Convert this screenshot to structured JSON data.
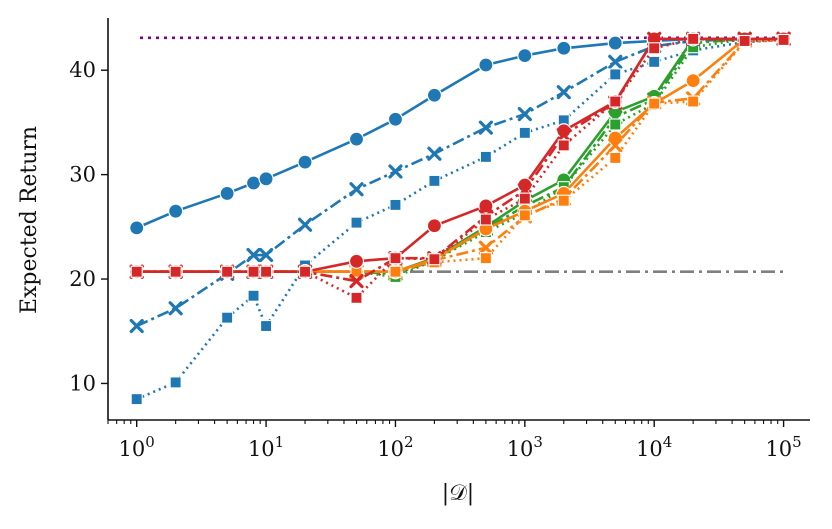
{
  "chart_data": {
    "type": "line",
    "xscale": "log",
    "xlabel": "|𝒟|",
    "ylabel": "Expected Return",
    "xlim": [
      0.6,
      160000
    ],
    "ylim": [
      6.5,
      45
    ],
    "xticks": [
      {
        "value": 1,
        "base": "10",
        "exp": "0"
      },
      {
        "value": 10,
        "base": "10",
        "exp": "1"
      },
      {
        "value": 100,
        "base": "10",
        "exp": "2"
      },
      {
        "value": 1000,
        "base": "10",
        "exp": "3"
      },
      {
        "value": 10000,
        "base": "10",
        "exp": "4"
      },
      {
        "value": 100000,
        "base": "10",
        "exp": "5"
      }
    ],
    "yticks": [
      {
        "value": 10,
        "label": "10"
      },
      {
        "value": 20,
        "label": "20"
      },
      {
        "value": 30,
        "label": "30"
      },
      {
        "value": 40,
        "label": "40"
      }
    ],
    "reference_lines": [
      {
        "name": "expert-level",
        "y": 43.1,
        "color": "#800080",
        "dash": "3,5"
      },
      {
        "name": "baseline-level",
        "y": 20.7,
        "color": "#7f7f7f",
        "dash": "14,5,3,5"
      }
    ],
    "series": [
      {
        "name": "blue-circle-solid",
        "color": "#1f77b4",
        "marker": "circle",
        "dash": "",
        "x": [
          1,
          2,
          5,
          8,
          10,
          20,
          50,
          100,
          200,
          500,
          1000,
          2000,
          5000,
          10000,
          20000,
          50000,
          100000
        ],
        "y": [
          24.9,
          26.5,
          28.2,
          29.2,
          29.6,
          31.2,
          33.4,
          35.3,
          37.6,
          40.5,
          41.4,
          42.1,
          42.6,
          42.8,
          43.0,
          43.0,
          43.0
        ]
      },
      {
        "name": "blue-x-dashdot",
        "color": "#1f77b4",
        "marker": "x",
        "dash": "12,4,3,4",
        "x": [
          1,
          2,
          5,
          8,
          10,
          20,
          50,
          100,
          200,
          500,
          1000,
          2000,
          5000,
          10000,
          20000,
          50000,
          100000
        ],
        "y": [
          15.5,
          17.2,
          20.5,
          22.3,
          22.3,
          25.2,
          28.6,
          30.3,
          32.0,
          34.5,
          35.8,
          37.9,
          40.8,
          42.3,
          42.8,
          43.0,
          43.0
        ]
      },
      {
        "name": "blue-square-dotted",
        "color": "#1f77b4",
        "marker": "square",
        "dash": "2,4",
        "x": [
          1,
          2,
          5,
          8,
          10,
          20,
          50,
          100,
          200,
          500,
          1000,
          2000,
          5000,
          10000,
          20000,
          50000,
          100000
        ],
        "y": [
          8.5,
          10.1,
          16.3,
          18.4,
          15.5,
          21.3,
          25.4,
          27.1,
          29.4,
          31.7,
          34.0,
          35.2,
          39.6,
          40.8,
          41.9,
          42.7,
          42.9
        ]
      },
      {
        "name": "green-circle-solid",
        "color": "#2ca02c",
        "marker": "circle",
        "dash": "",
        "x": [
          1,
          2,
          5,
          8,
          10,
          20,
          50,
          100,
          200,
          500,
          1000,
          2000,
          5000,
          10000,
          20000,
          50000,
          100000
        ],
        "y": [
          20.7,
          20.7,
          20.7,
          20.7,
          20.7,
          20.7,
          20.7,
          20.7,
          22.0,
          25.0,
          27.5,
          29.5,
          36.0,
          37.5,
          43.0,
          43.0,
          43.0
        ]
      },
      {
        "name": "green-x-dashdot",
        "color": "#2ca02c",
        "marker": "x",
        "dash": "12,4,3,4",
        "x": [
          1,
          2,
          5,
          8,
          10,
          20,
          50,
          100,
          200,
          500,
          1000,
          2000,
          5000,
          10000,
          20000,
          50000,
          100000
        ],
        "y": [
          20.7,
          20.7,
          20.7,
          20.7,
          20.7,
          20.7,
          20.7,
          20.5,
          21.8,
          24.8,
          27.0,
          28.8,
          35.5,
          37.2,
          42.6,
          43.0,
          43.0
        ]
      },
      {
        "name": "green-square-dotted",
        "color": "#2ca02c",
        "marker": "square",
        "dash": "2,4",
        "x": [
          1,
          2,
          5,
          8,
          10,
          20,
          50,
          100,
          200,
          500,
          1000,
          2000,
          5000,
          10000,
          20000,
          50000,
          100000
        ],
        "y": [
          20.7,
          20.7,
          20.7,
          20.7,
          20.7,
          20.7,
          20.7,
          20.2,
          21.8,
          24.5,
          26.3,
          28.8,
          34.8,
          36.8,
          42.2,
          43.0,
          43.0
        ]
      },
      {
        "name": "orange-circle-solid",
        "color": "#ff7f0e",
        "marker": "circle",
        "dash": "",
        "x": [
          1,
          2,
          5,
          8,
          10,
          20,
          50,
          100,
          200,
          500,
          1000,
          2000,
          5000,
          10000,
          20000,
          50000,
          100000
        ],
        "y": [
          20.7,
          20.7,
          20.7,
          20.7,
          20.7,
          20.7,
          20.7,
          20.7,
          21.9,
          24.8,
          26.5,
          28.2,
          33.5,
          36.8,
          39.0,
          43.0,
          43.0
        ]
      },
      {
        "name": "orange-x-dashdot",
        "color": "#ff7f0e",
        "marker": "x",
        "dash": "12,4,3,4",
        "x": [
          1,
          2,
          5,
          8,
          10,
          20,
          50,
          100,
          200,
          500,
          1000,
          2000,
          5000,
          10000,
          20000,
          50000,
          100000
        ],
        "y": [
          20.7,
          20.7,
          20.7,
          20.7,
          20.7,
          20.7,
          20.7,
          20.7,
          21.8,
          23.0,
          26.0,
          27.7,
          32.8,
          36.9,
          37.3,
          42.8,
          43.0
        ]
      },
      {
        "name": "orange-square-dotted",
        "color": "#ff7f0e",
        "marker": "square",
        "dash": "2,4",
        "x": [
          1,
          2,
          5,
          8,
          10,
          20,
          50,
          100,
          200,
          500,
          1000,
          2000,
          5000,
          10000,
          20000,
          50000,
          100000
        ],
        "y": [
          20.7,
          20.7,
          20.7,
          20.7,
          20.7,
          20.7,
          20.7,
          20.7,
          21.6,
          22.0,
          26.1,
          27.5,
          31.6,
          36.8,
          37.0,
          42.7,
          42.9
        ]
      },
      {
        "name": "red-circle-solid",
        "color": "#d62728",
        "marker": "circle",
        "dash": "",
        "x": [
          1,
          2,
          5,
          8,
          10,
          20,
          50,
          100,
          200,
          500,
          1000,
          2000,
          5000,
          10000,
          20000,
          50000,
          100000
        ],
        "y": [
          20.7,
          20.7,
          20.7,
          20.7,
          20.7,
          20.7,
          21.7,
          22.0,
          25.1,
          27.0,
          29.0,
          34.2,
          37.0,
          43.0,
          43.0,
          43.0,
          43.0
        ]
      },
      {
        "name": "red-x-dashdot",
        "color": "#d62728",
        "marker": "x",
        "dash": "12,4,3,4",
        "x": [
          1,
          2,
          5,
          8,
          10,
          20,
          50,
          100,
          200,
          500,
          1000,
          2000,
          5000,
          10000,
          20000,
          50000,
          100000
        ],
        "y": [
          20.7,
          20.7,
          20.7,
          20.7,
          20.7,
          20.7,
          19.8,
          22.0,
          22.0,
          26.0,
          28.5,
          33.8,
          36.9,
          43.0,
          43.0,
          43.0,
          43.0
        ]
      },
      {
        "name": "red-square-dotted",
        "color": "#d62728",
        "marker": "square",
        "dash": "2,4",
        "x": [
          1,
          2,
          5,
          8,
          10,
          20,
          50,
          100,
          200,
          500,
          1000,
          2000,
          5000,
          10000,
          20000,
          50000,
          100000
        ],
        "y": [
          20.7,
          20.7,
          20.7,
          20.7,
          20.7,
          20.7,
          18.2,
          22.0,
          21.9,
          25.7,
          27.7,
          32.8,
          37.0,
          42.1,
          43.0,
          42.8,
          42.9
        ]
      }
    ]
  }
}
